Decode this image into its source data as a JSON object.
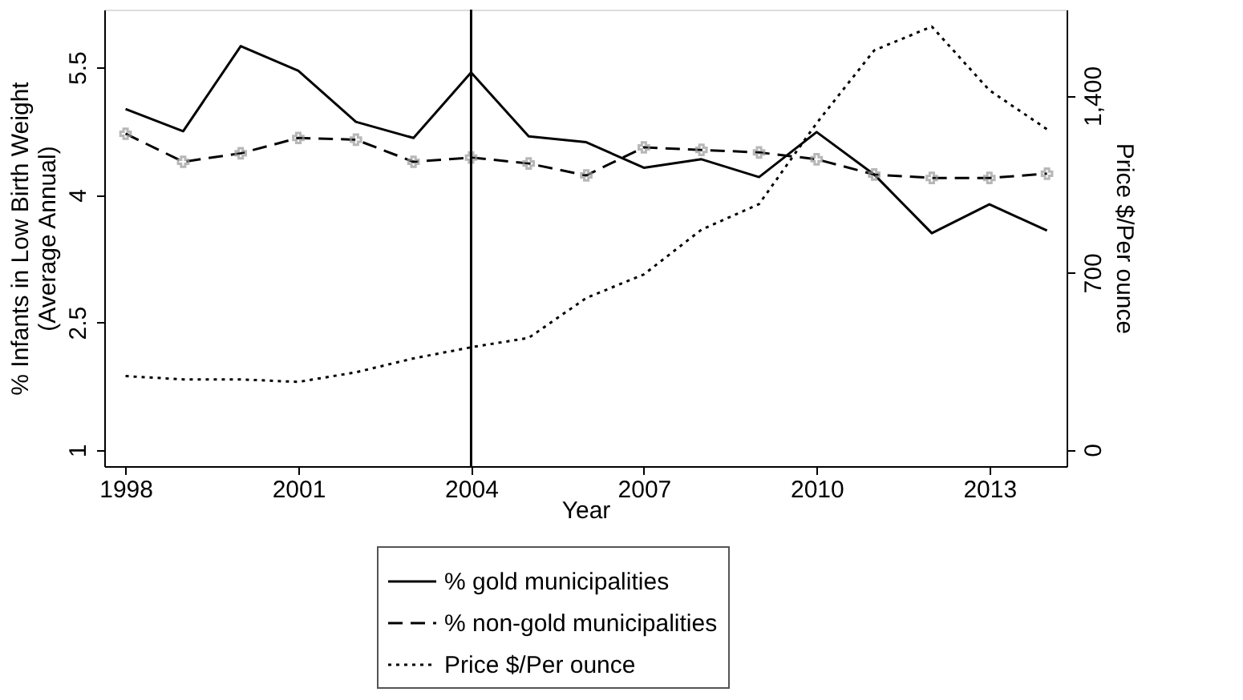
{
  "chart_data": {
    "type": "line",
    "xlabel": "Year",
    "ylabel": "% Infants in Low Birth Weight\n(Average Annual)",
    "y2label": "Price $/Per ounce",
    "x": [
      1998,
      1999,
      2000,
      2001,
      2002,
      2003,
      2004,
      2005,
      2006,
      2007,
      2008,
      2009,
      2010,
      2011,
      2012,
      2013,
      2014
    ],
    "series": [
      {
        "name": "% gold municipalities",
        "color": "#000000",
        "line_style": "solid",
        "values": [
          5.01,
          4.75,
          5.75,
          5.46,
          4.86,
          4.67,
          5.44,
          4.69,
          4.62,
          4.32,
          4.42,
          4.21,
          4.74,
          4.24,
          3.55,
          3.89,
          3.58
        ]
      },
      {
        "name": "% non-gold municipalities",
        "color": "#000000",
        "line_style": "dashed",
        "marker": "cross",
        "values": [
          4.72,
          4.39,
          4.49,
          4.67,
          4.65,
          4.39,
          4.44,
          4.37,
          4.23,
          4.56,
          4.53,
          4.5,
          4.42,
          4.24,
          4.2,
          4.2,
          4.25
        ]
      },
      {
        "name": "Price $/Per ounce",
        "color": "#000000",
        "line_style": "dotted",
        "axis": "y2",
        "values": [
          291,
          278,
          278,
          268,
          306,
          361,
          405,
          442,
          600,
          693,
          870,
          971,
          1291,
          1579,
          1673,
          1421,
          1267
        ]
      }
    ],
    "xlim": [
      1997.63,
      2014.34
    ],
    "xticks": [
      1998,
      2001,
      2004,
      2007,
      2010,
      2013
    ],
    "ylim": [
      0.81,
      6.18
    ],
    "yticks": [
      1,
      2.5,
      4,
      5.5
    ],
    "y2lim": [
      -65,
      1740
    ],
    "y2ticks": [
      0,
      700,
      {
        "value": 1400,
        "label": "1,400"
      }
    ],
    "ref_lines": [
      {
        "axis": "x",
        "value": 2004,
        "color": "#000000"
      }
    ],
    "legend": "bottom",
    "grid": false
  }
}
